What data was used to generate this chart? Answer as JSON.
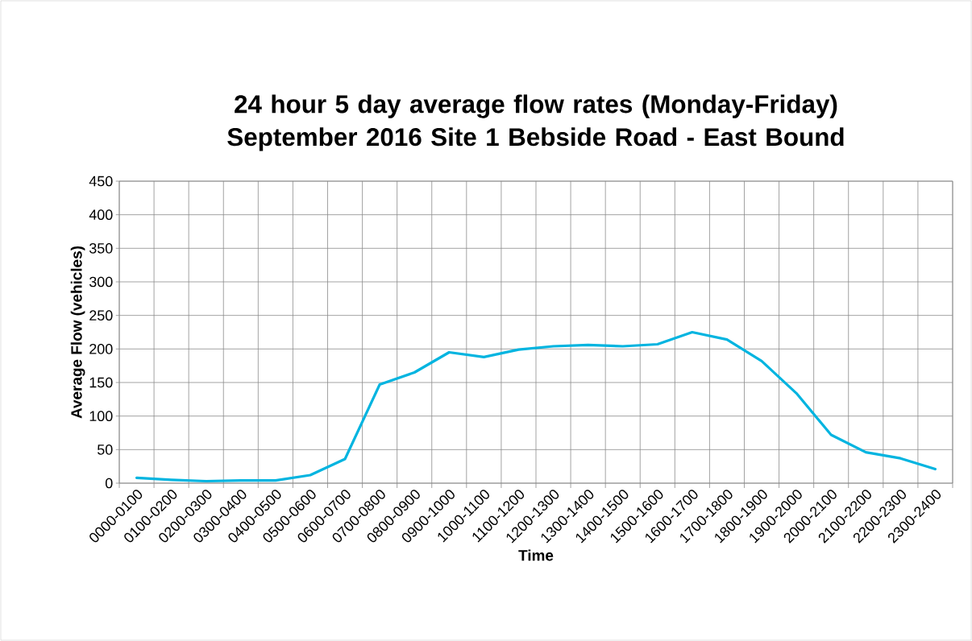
{
  "chart_data": {
    "type": "line",
    "title": "24 hour 5 day average flow rates (Monday-Friday) September 2016 Site 1 Bebside Road - East Bound",
    "xlabel": "Time",
    "ylabel": "Average Flow (vehicles)",
    "categories": [
      "0000-0100",
      "0100-0200",
      "0200-0300",
      "0300-0400",
      "0400-0500",
      "0500-0600",
      "0600-0700",
      "0700-0800",
      "0800-0900",
      "0900-1000",
      "1000-1100",
      "1100-1200",
      "1200-1300",
      "1300-1400",
      "1400-1500",
      "1500-1600",
      "1600-1700",
      "1700-1800",
      "1800-1900",
      "1900-2000",
      "2000-2100",
      "2100-2200",
      "2200-2300",
      "2300-2400"
    ],
    "series": [
      {
        "color": "#00b4e0",
        "values": [
          8,
          5,
          3,
          4,
          4,
          12,
          36,
          147,
          165,
          195,
          188,
          199,
          204,
          206,
          204,
          207,
          225,
          214,
          182,
          134,
          72,
          46,
          37,
          21
        ]
      }
    ],
    "ylim": [
      0,
      450
    ],
    "yticks": [
      0,
      50,
      100,
      150,
      200,
      250,
      300,
      350,
      400,
      450
    ],
    "grid": true,
    "marker": "none",
    "line_style": "solid"
  }
}
